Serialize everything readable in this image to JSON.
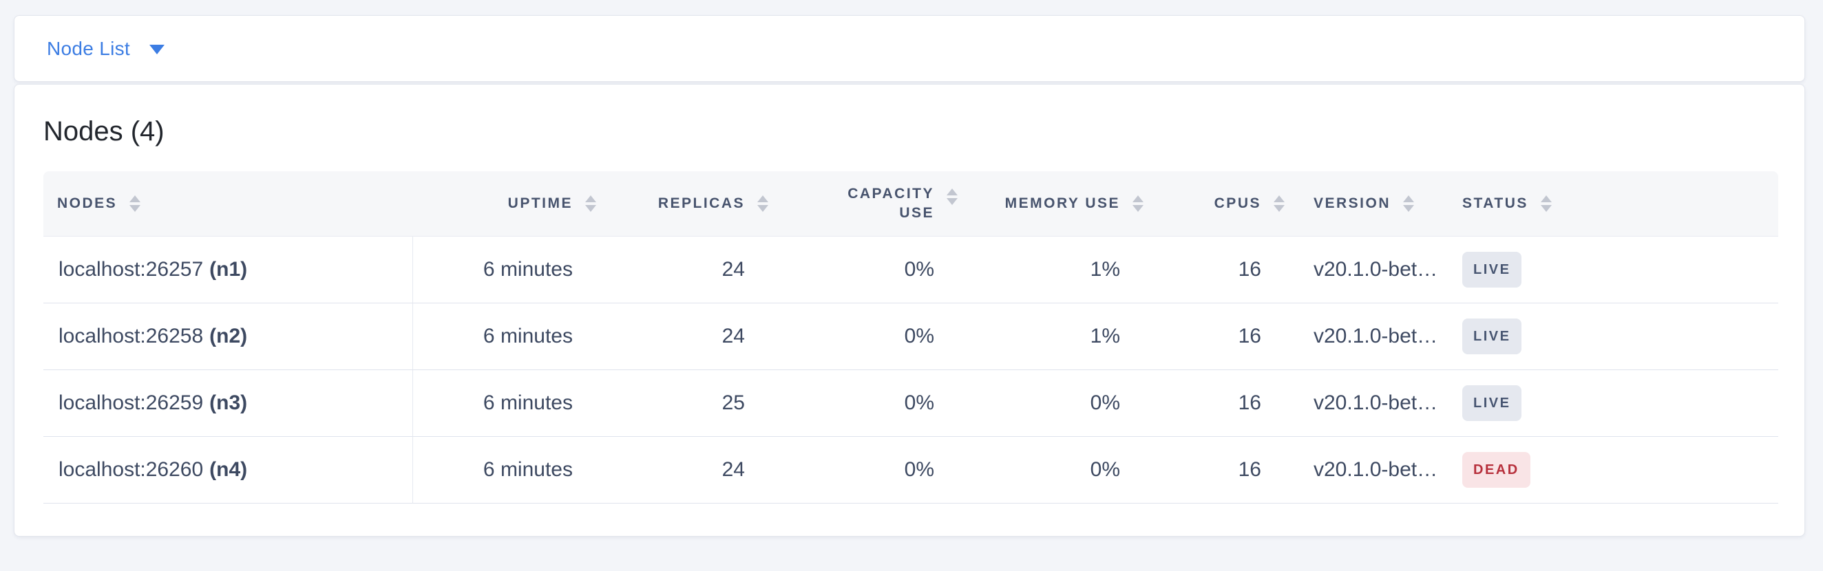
{
  "topbar": {
    "view_selector_label": "Node List"
  },
  "main": {
    "title": "Nodes (4)"
  },
  "table": {
    "columns": [
      {
        "label": "NODES"
      },
      {
        "label": "UPTIME"
      },
      {
        "label": "REPLICAS"
      },
      {
        "label": "CAPACITY USE"
      },
      {
        "label": "MEMORY USE"
      },
      {
        "label": "CPUS"
      },
      {
        "label": "VERSION"
      },
      {
        "label": "STATUS"
      }
    ],
    "rows": [
      {
        "node_address": "localhost:26257",
        "node_name": "(n1)",
        "uptime": "6 minutes",
        "replicas": "24",
        "capacity_use": "0%",
        "memory_use": "1%",
        "cpus": "16",
        "version": "v20.1.0-bet…",
        "status": {
          "label": "LIVE",
          "variant": "live"
        }
      },
      {
        "node_address": "localhost:26258",
        "node_name": "(n2)",
        "uptime": "6 minutes",
        "replicas": "24",
        "capacity_use": "0%",
        "memory_use": "1%",
        "cpus": "16",
        "version": "v20.1.0-bet…",
        "status": {
          "label": "LIVE",
          "variant": "live"
        }
      },
      {
        "node_address": "localhost:26259",
        "node_name": "(n3)",
        "uptime": "6 minutes",
        "replicas": "25",
        "capacity_use": "0%",
        "memory_use": "0%",
        "cpus": "16",
        "version": "v20.1.0-bet…",
        "status": {
          "label": "LIVE",
          "variant": "live"
        }
      },
      {
        "node_address": "localhost:26260",
        "node_name": "(n4)",
        "uptime": "6 minutes",
        "replicas": "24",
        "capacity_use": "0%",
        "memory_use": "0%",
        "cpus": "16",
        "version": "v20.1.0-bet…",
        "status": {
          "label": "DEAD",
          "variant": "dead"
        }
      }
    ]
  },
  "colors": {
    "accent_blue": "#3C7DE3",
    "live_badge_bg": "#E5E8EF",
    "live_badge_text": "#475571",
    "dead_badge_bg": "#F9E4E6",
    "dead_badge_text": "#B7303C"
  }
}
